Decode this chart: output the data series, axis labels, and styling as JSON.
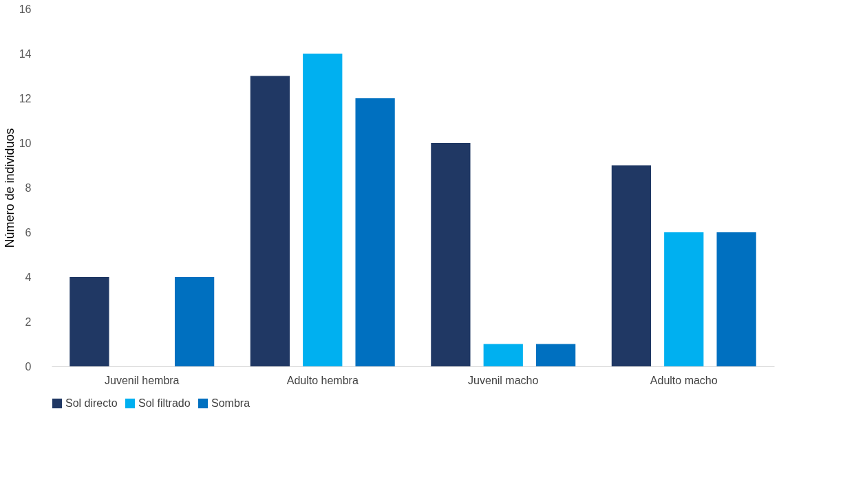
{
  "chart_data": {
    "type": "bar",
    "ylabel": "Número de individuos",
    "categories": [
      "Juvenil hembra",
      "Adulto hembra",
      "Juvenil macho",
      "Adulto macho"
    ],
    "series": [
      {
        "name": "Sol directo",
        "color": "#203864",
        "values": [
          4,
          13,
          10,
          9
        ]
      },
      {
        "name": "Sol filtrado",
        "color": "#00b0f0",
        "values": [
          0,
          14,
          1,
          6
        ]
      },
      {
        "name": "Sombra",
        "color": "#0070c0",
        "values": [
          4,
          12,
          1,
          6
        ]
      }
    ],
    "ylim": [
      0,
      16
    ],
    "yticks": [
      0,
      2,
      4,
      6,
      8,
      10,
      12,
      14,
      16
    ],
    "grid": false,
    "legend": "bottom"
  }
}
